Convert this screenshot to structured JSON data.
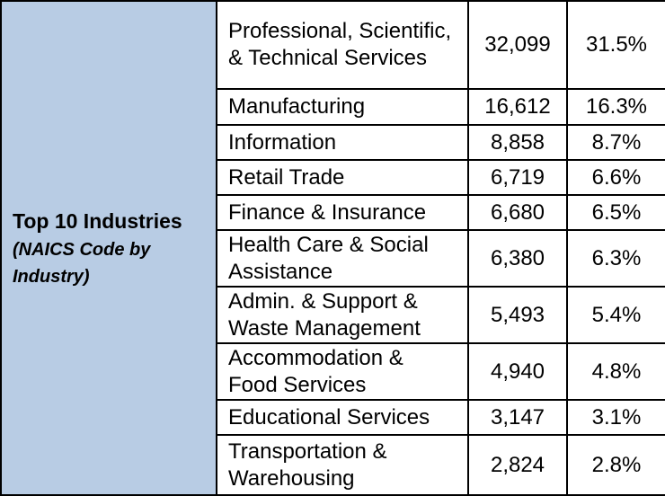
{
  "side_header": {
    "title": "Top 10 Industries",
    "subtitle": "(NAICS Code by Industry)"
  },
  "rows": [
    {
      "industry": "Professional, Scientific, & Technical Services",
      "count": "32,099",
      "percent": "31.5%"
    },
    {
      "industry": "Manufacturing",
      "count": "16,612",
      "percent": "16.3%"
    },
    {
      "industry": "Information",
      "count": "8,858",
      "percent": "8.7%"
    },
    {
      "industry": "Retail Trade",
      "count": "6,719",
      "percent": "6.6%"
    },
    {
      "industry": "Finance & Insurance",
      "count": "6,680",
      "percent": "6.5%"
    },
    {
      "industry": "Health Care & Social Assistance",
      "count": "6,380",
      "percent": "6.3%"
    },
    {
      "industry": "Admin. & Support & Waste Management",
      "count": "5,493",
      "percent": "5.4%"
    },
    {
      "industry": "Accommodation & Food Services",
      "count": "4,940",
      "percent": "4.8%"
    },
    {
      "industry": "Educational Services",
      "count": "3,147",
      "percent": "3.1%"
    },
    {
      "industry": "Transportation & Warehousing",
      "count": "2,824",
      "percent": "2.8%"
    }
  ],
  "colors": {
    "side_header_background": "#b8cce4",
    "border": "#000000"
  }
}
